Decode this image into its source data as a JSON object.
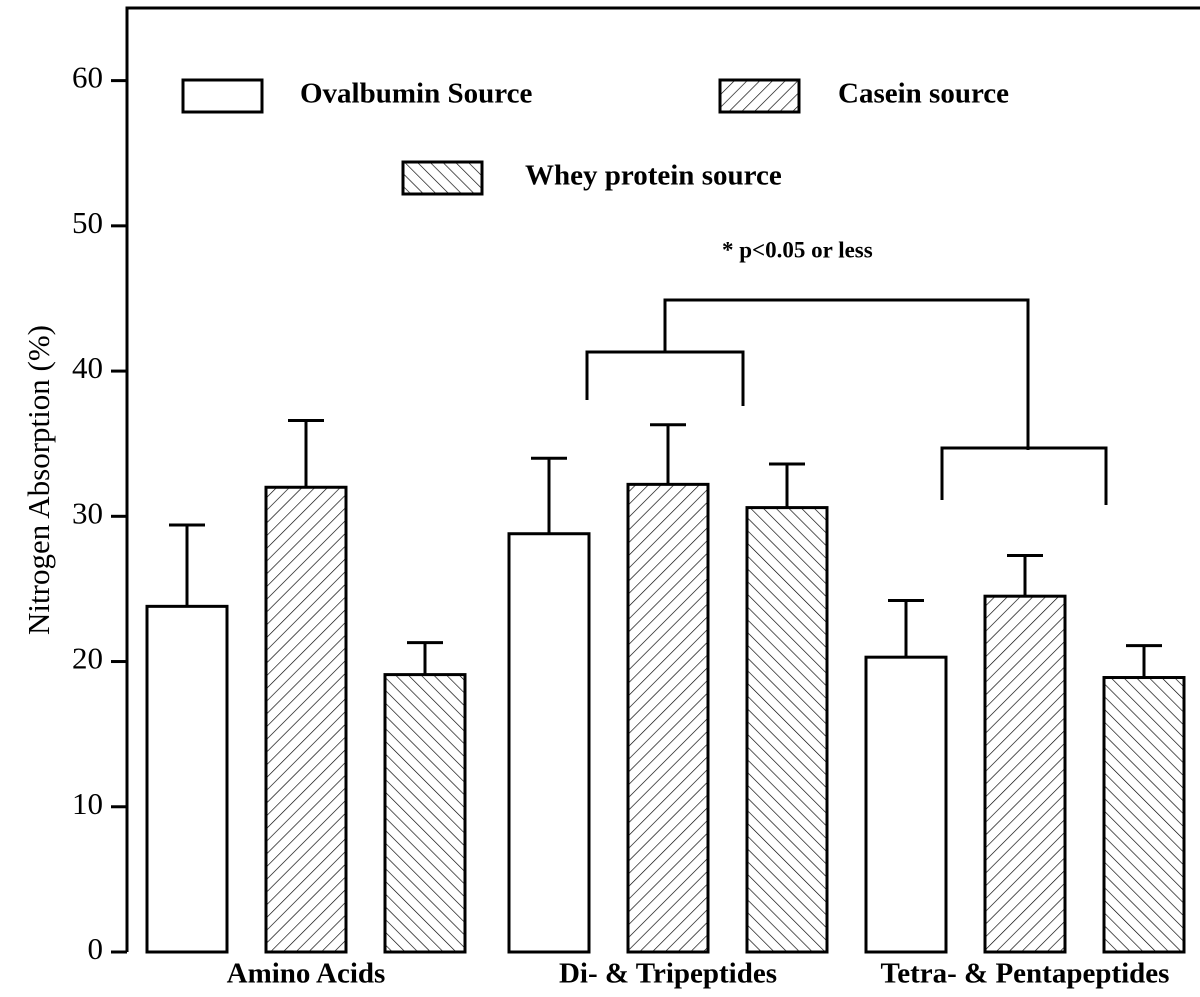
{
  "chart_data": {
    "type": "bar",
    "y_label": "Nitrogen Absorption (%)",
    "annotation": "*  p<0.05 or less",
    "categories": [
      "Amino Acids",
      "Di- & Tripeptides",
      "Tetra- & Pentapeptides"
    ],
    "series": [
      {
        "name": "Ovalbumin Source",
        "color": "#000000",
        "hatch": "none",
        "values": [
          23.8,
          28.8,
          20.3
        ],
        "errors": [
          5.6,
          5.2,
          3.9
        ]
      },
      {
        "name": "Casein source",
        "color": "#000000",
        "hatch": "/",
        "values": [
          32.0,
          32.2,
          24.5
        ],
        "errors": [
          4.6,
          4.1,
          2.8
        ]
      },
      {
        "name": "Whey protein source",
        "color": "#000000",
        "hatch": "\\",
        "values": [
          19.1,
          30.6,
          18.9
        ],
        "errors": [
          2.2,
          3.0,
          2.2
        ]
      }
    ],
    "ylim": [
      0,
      65
    ],
    "yticks": [
      0,
      10,
      20,
      30,
      40,
      50,
      60
    ]
  }
}
